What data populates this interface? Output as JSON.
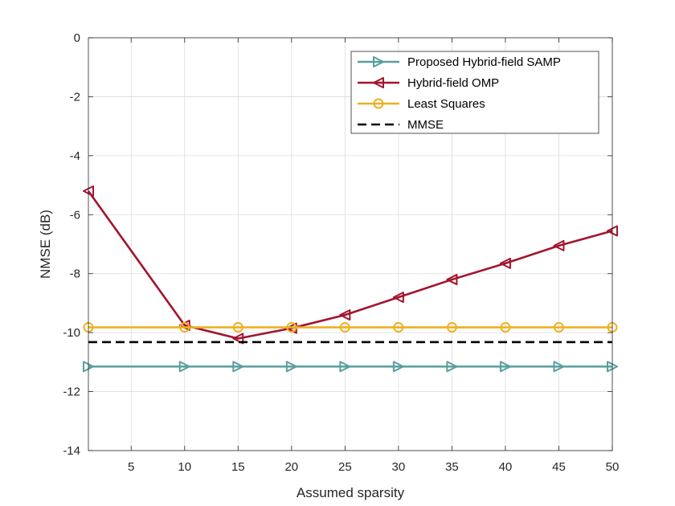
{
  "chart_data": {
    "type": "line",
    "title": "",
    "xlabel": "Assumed sparsity",
    "ylabel": "NMSE (dB)",
    "xlim": [
      1,
      50
    ],
    "ylim": [
      -14,
      0
    ],
    "xticks": [
      5,
      10,
      15,
      20,
      25,
      30,
      35,
      40,
      45,
      50
    ],
    "yticks": [
      0,
      -2,
      -4,
      -6,
      -8,
      -10,
      -12,
      -14
    ],
    "grid": true,
    "legend_position": "top-right",
    "series": [
      {
        "name": "Proposed Hybrid-field SAMP",
        "color": "#5A9E9E",
        "marker": "triangle-right",
        "line": "solid",
        "x": [
          1,
          10,
          15,
          20,
          25,
          30,
          35,
          40,
          45,
          50
        ],
        "y": [
          -11.15,
          -11.15,
          -11.15,
          -11.15,
          -11.15,
          -11.15,
          -11.15,
          -11.15,
          -11.15,
          -11.15
        ]
      },
      {
        "name": "Hybrid-field OMP",
        "color": "#A2142F",
        "marker": "triangle-left",
        "line": "solid",
        "x": [
          1,
          10,
          15,
          20,
          25,
          30,
          35,
          40,
          45,
          50
        ],
        "y": [
          -5.2,
          -9.75,
          -10.2,
          -9.85,
          -9.4,
          -8.8,
          -8.2,
          -7.65,
          -7.05,
          -6.55
        ]
      },
      {
        "name": "Least Squares",
        "color": "#EDB120",
        "marker": "circle",
        "line": "solid",
        "x": [
          1,
          10,
          15,
          20,
          25,
          30,
          35,
          40,
          45,
          50
        ],
        "y": [
          -9.82,
          -9.82,
          -9.82,
          -9.82,
          -9.82,
          -9.82,
          -9.82,
          -9.82,
          -9.82,
          -9.82
        ]
      },
      {
        "name": "MMSE",
        "color": "#000000",
        "marker": "none",
        "line": "dashed",
        "x": [
          1,
          50
        ],
        "y": [
          -10.32,
          -10.32
        ]
      }
    ]
  }
}
